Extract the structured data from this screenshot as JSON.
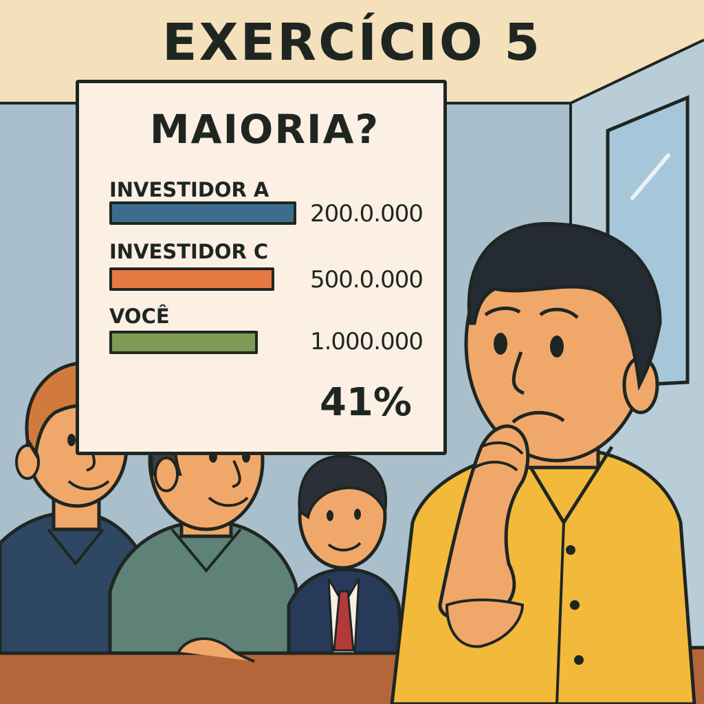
{
  "title": "EXERCÍCIO 5",
  "board": {
    "heading": "MAIORIA?",
    "rows": [
      {
        "label": "INVESTIDOR A",
        "value": "200.0.000",
        "color": "#3c6d8e"
      },
      {
        "label": "INVESTIDOR C",
        "value": "500.0.000",
        "color": "#e57a43"
      },
      {
        "label": "VOCÊ",
        "value": "1.000.000",
        "color": "#7e9a57"
      }
    ],
    "percent": "41%"
  },
  "colors": {
    "wall": "#a9bfcc",
    "ceiling": "#f4e0bb",
    "desk": "#b5653a",
    "worried_man_shirt": "#f2b93b",
    "outline": "#1f2622"
  }
}
